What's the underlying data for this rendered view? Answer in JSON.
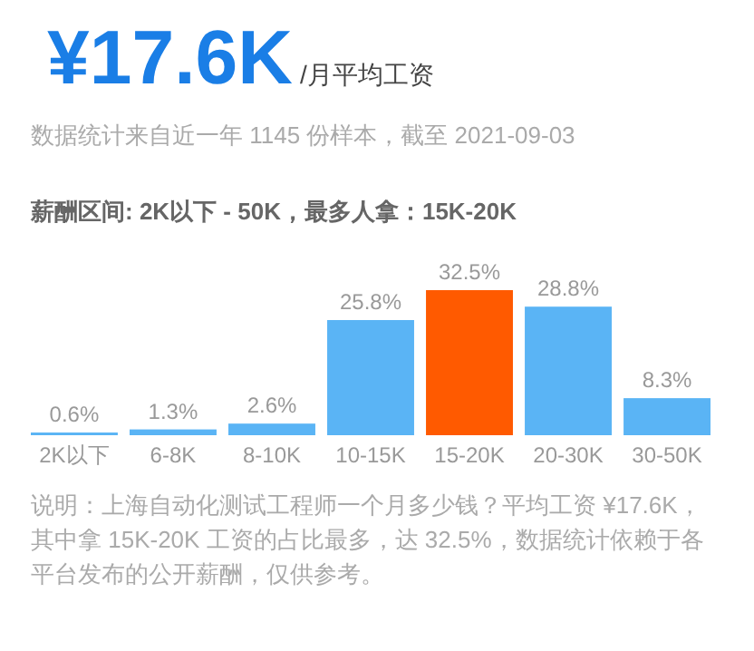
{
  "chart_data": {
    "type": "bar",
    "title": "¥17.6K",
    "subtitle": "/月平均工资",
    "annotations": [
      "数据统计来自近一年 1145 份样本，截至 2021-09-03",
      "薪酬区间: 2K以下 - 50K，最多人拿：15K-20K",
      "说明：上海自动化测试工程师一个月多少钱？平均工资 ¥17.6K，其中拿 15K-20K 工资的占比最多，达 32.5%，数据统计依赖于各平台发布的公开薪酬，仅供参考。"
    ],
    "categories": [
      "2K以下",
      "6-8K",
      "8-10K",
      "10-15K",
      "15-20K",
      "20-30K",
      "30-50K"
    ],
    "values": [
      0.6,
      1.3,
      2.6,
      25.8,
      32.5,
      28.8,
      8.3
    ],
    "colors": [
      "#5ab4f5",
      "#5ab4f5",
      "#5ab4f5",
      "#5ab4f5",
      "#ff5a00",
      "#5ab4f5",
      "#5ab4f5"
    ],
    "value_labels": [
      "0.6%",
      "1.3%",
      "2.6%",
      "25.8%",
      "32.5%",
      "28.8%",
      "8.3%"
    ]
  }
}
